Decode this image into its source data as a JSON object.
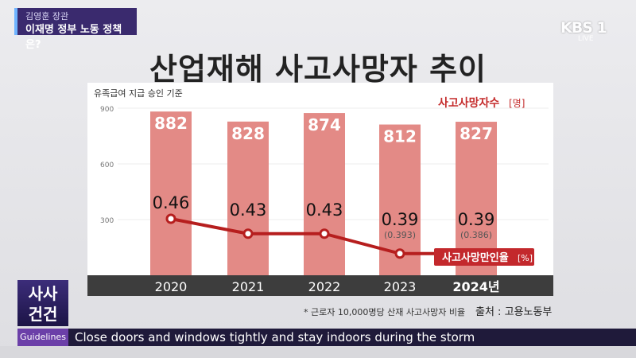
{
  "header": {
    "tag_line1": "김영훈 장관",
    "tag_line2": "이재명 정부 노동 정책은?"
  },
  "broadcaster": {
    "logo": "KBS 1",
    "sub": "LIVE"
  },
  "chart_data": {
    "type": "bar",
    "title": "산업재해 사고사망자 추이",
    "subtitle": "유족급여 지급 승인 기준",
    "categories": [
      "2020",
      "2021",
      "2022",
      "2023",
      "2024년"
    ],
    "ylim": [
      0,
      900
    ],
    "yticks": [
      300,
      600,
      900
    ],
    "series": [
      {
        "name": "사고사망자수",
        "unit": "[명]",
        "values": [
          882,
          828,
          874,
          812,
          827
        ]
      },
      {
        "name": "사고사망만인율",
        "unit": "[%]",
        "type": "line",
        "values": [
          0.46,
          0.43,
          0.43,
          0.39,
          0.39
        ],
        "labels": [
          "0.46",
          "0.43",
          "0.43",
          "0.39",
          "0.39"
        ],
        "sub_labels": [
          "",
          "",
          "",
          "(0.393)",
          "(0.386)"
        ]
      }
    ],
    "colors": {
      "bar": "#e38a86",
      "line": "#b61e1e"
    }
  },
  "footnote": "* 근로자 10,000명당 산재 사고사망자 비율",
  "source": "출처 : 고용노동부",
  "segment": {
    "line1": "사사",
    "line2": "건건"
  },
  "ticker": {
    "label": "Guidelines",
    "text": "Close doors and windows tightly and stay indoors during the storm"
  }
}
